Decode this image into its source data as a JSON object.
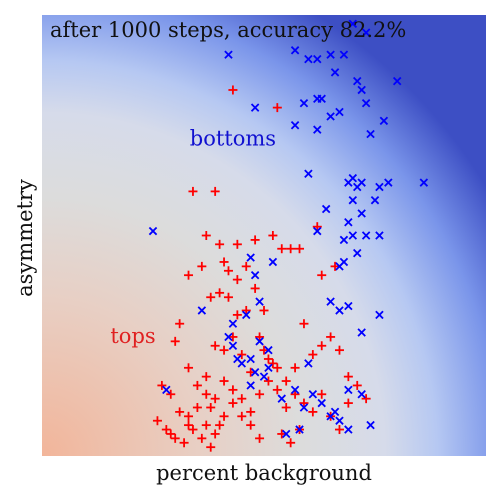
{
  "chart_data": {
    "type": "scatter",
    "title": "after 1000 steps, accuracy 82.2%",
    "xlabel": "percent background",
    "ylabel": "asymmetry",
    "xlim": [
      0,
      1
    ],
    "ylim": [
      0,
      1
    ],
    "ticks_visible": false,
    "grid": false,
    "background": "decision-boundary gradient: warm (tops) bottom-left, cool (bottoms) top-right",
    "region_colors": {
      "tops": "#f2b59a",
      "bottoms": "#3d4fc4",
      "neutral": "#dcdcdc"
    },
    "class_labels": [
      {
        "text": "bottoms",
        "color": "#1010d0",
        "x": 0.43,
        "y": 0.716
      },
      {
        "text": "tops",
        "color": "#e02020",
        "x": 0.205,
        "y": 0.269
      }
    ],
    "series": [
      {
        "name": "tops",
        "marker": "+",
        "color": "#ff0000",
        "points": [
          [
            0.43,
            0.83
          ],
          [
            0.53,
            0.79
          ],
          [
            0.34,
            0.6
          ],
          [
            0.39,
            0.6
          ],
          [
            0.37,
            0.5
          ],
          [
            0.4,
            0.48
          ],
          [
            0.56,
            0.47
          ],
          [
            0.41,
            0.44
          ],
          [
            0.44,
            0.48
          ],
          [
            0.48,
            0.49
          ],
          [
            0.52,
            0.5
          ],
          [
            0.54,
            0.47
          ],
          [
            0.62,
            0.52
          ],
          [
            0.58,
            0.47
          ],
          [
            0.63,
            0.41
          ],
          [
            0.66,
            0.43
          ],
          [
            0.33,
            0.41
          ],
          [
            0.36,
            0.43
          ],
          [
            0.38,
            0.36
          ],
          [
            0.4,
            0.37
          ],
          [
            0.42,
            0.36
          ],
          [
            0.44,
            0.32
          ],
          [
            0.46,
            0.33
          ],
          [
            0.48,
            0.38
          ],
          [
            0.5,
            0.33
          ],
          [
            0.31,
            0.3
          ],
          [
            0.3,
            0.26
          ],
          [
            0.33,
            0.2
          ],
          [
            0.37,
            0.18
          ],
          [
            0.39,
            0.25
          ],
          [
            0.41,
            0.24
          ],
          [
            0.43,
            0.27
          ],
          [
            0.45,
            0.23
          ],
          [
            0.47,
            0.19
          ],
          [
            0.49,
            0.27
          ],
          [
            0.51,
            0.22
          ],
          [
            0.53,
            0.2
          ],
          [
            0.55,
            0.17
          ],
          [
            0.57,
            0.2
          ],
          [
            0.59,
            0.3
          ],
          [
            0.61,
            0.23
          ],
          [
            0.63,
            0.25
          ],
          [
            0.65,
            0.27
          ],
          [
            0.67,
            0.24
          ],
          [
            0.69,
            0.18
          ],
          [
            0.71,
            0.16
          ],
          [
            0.73,
            0.13
          ],
          [
            0.35,
            0.16
          ],
          [
            0.37,
            0.14
          ],
          [
            0.39,
            0.13
          ],
          [
            0.41,
            0.17
          ],
          [
            0.43,
            0.15
          ],
          [
            0.45,
            0.13
          ],
          [
            0.47,
            0.1
          ],
          [
            0.49,
            0.14
          ],
          [
            0.51,
            0.17
          ],
          [
            0.53,
            0.15
          ],
          [
            0.55,
            0.11
          ],
          [
            0.57,
            0.14
          ],
          [
            0.59,
            0.12
          ],
          [
            0.27,
            0.16
          ],
          [
            0.29,
            0.14
          ],
          [
            0.31,
            0.1
          ],
          [
            0.33,
            0.09
          ],
          [
            0.35,
            0.11
          ],
          [
            0.37,
            0.07
          ],
          [
            0.39,
            0.05
          ],
          [
            0.41,
            0.09
          ],
          [
            0.43,
            0.12
          ],
          [
            0.45,
            0.09
          ],
          [
            0.47,
            0.07
          ],
          [
            0.49,
            0.04
          ],
          [
            0.26,
            0.08
          ],
          [
            0.28,
            0.06
          ],
          [
            0.3,
            0.04
          ],
          [
            0.32,
            0.03
          ],
          [
            0.34,
            0.06
          ],
          [
            0.36,
            0.04
          ],
          [
            0.38,
            0.02
          ],
          [
            0.4,
            0.07
          ],
          [
            0.54,
            0.05
          ],
          [
            0.56,
            0.03
          ],
          [
            0.58,
            0.06
          ],
          [
            0.61,
            0.1
          ],
          [
            0.63,
            0.14
          ],
          [
            0.65,
            0.09
          ],
          [
            0.67,
            0.06
          ],
          [
            0.69,
            0.12
          ],
          [
            0.44,
            0.4
          ],
          [
            0.42,
            0.42
          ],
          [
            0.46,
            0.43
          ],
          [
            0.5,
            0.24
          ],
          [
            0.52,
            0.21
          ],
          [
            0.33,
            0.07
          ],
          [
            0.29,
            0.05
          ],
          [
            0.38,
            0.11
          ]
        ]
      },
      {
        "name": "bottoms",
        "marker": "x",
        "color": "#0000ff",
        "points": [
          [
            0.7,
            0.98
          ],
          [
            0.73,
            0.96
          ],
          [
            0.42,
            0.91
          ],
          [
            0.57,
            0.92
          ],
          [
            0.6,
            0.9
          ],
          [
            0.62,
            0.9
          ],
          [
            0.65,
            0.91
          ],
          [
            0.68,
            0.91
          ],
          [
            0.66,
            0.87
          ],
          [
            0.71,
            0.85
          ],
          [
            0.72,
            0.83
          ],
          [
            0.8,
            0.85
          ],
          [
            0.48,
            0.79
          ],
          [
            0.59,
            0.8
          ],
          [
            0.62,
            0.81
          ],
          [
            0.63,
            0.81
          ],
          [
            0.65,
            0.77
          ],
          [
            0.67,
            0.78
          ],
          [
            0.73,
            0.8
          ],
          [
            0.77,
            0.76
          ],
          [
            0.57,
            0.75
          ],
          [
            0.62,
            0.74
          ],
          [
            0.74,
            0.73
          ],
          [
            0.6,
            0.64
          ],
          [
            0.69,
            0.62
          ],
          [
            0.71,
            0.61
          ],
          [
            0.7,
            0.63
          ],
          [
            0.72,
            0.62
          ],
          [
            0.76,
            0.61
          ],
          [
            0.78,
            0.62
          ],
          [
            0.86,
            0.62
          ],
          [
            0.75,
            0.58
          ],
          [
            0.7,
            0.58
          ],
          [
            0.72,
            0.55
          ],
          [
            0.69,
            0.53
          ],
          [
            0.64,
            0.56
          ],
          [
            0.62,
            0.51
          ],
          [
            0.68,
            0.49
          ],
          [
            0.7,
            0.5
          ],
          [
            0.73,
            0.5
          ],
          [
            0.76,
            0.5
          ],
          [
            0.71,
            0.46
          ],
          [
            0.68,
            0.44
          ],
          [
            0.67,
            0.43
          ],
          [
            0.25,
            0.51
          ],
          [
            0.47,
            0.45
          ],
          [
            0.52,
            0.44
          ],
          [
            0.48,
            0.41
          ],
          [
            0.49,
            0.35
          ],
          [
            0.46,
            0.32
          ],
          [
            0.43,
            0.3
          ],
          [
            0.36,
            0.33
          ],
          [
            0.65,
            0.35
          ],
          [
            0.67,
            0.33
          ],
          [
            0.69,
            0.34
          ],
          [
            0.76,
            0.32
          ],
          [
            0.72,
            0.28
          ],
          [
            0.49,
            0.26
          ],
          [
            0.47,
            0.22
          ],
          [
            0.51,
            0.2
          ],
          [
            0.42,
            0.27
          ],
          [
            0.43,
            0.25
          ],
          [
            0.44,
            0.22
          ],
          [
            0.45,
            0.21
          ],
          [
            0.48,
            0.19
          ],
          [
            0.28,
            0.15
          ],
          [
            0.54,
            0.13
          ],
          [
            0.57,
            0.15
          ],
          [
            0.59,
            0.11
          ],
          [
            0.61,
            0.14
          ],
          [
            0.63,
            0.12
          ],
          [
            0.65,
            0.09
          ],
          [
            0.67,
            0.08
          ],
          [
            0.69,
            0.15
          ],
          [
            0.55,
            0.05
          ],
          [
            0.58,
            0.06
          ],
          [
            0.66,
            0.1
          ],
          [
            0.74,
            0.07
          ],
          [
            0.69,
            0.06
          ],
          [
            0.72,
            0.14
          ],
          [
            0.51,
            0.24
          ],
          [
            0.6,
            0.21
          ],
          [
            0.47,
            0.16
          ],
          [
            0.5,
            0.18
          ]
        ]
      }
    ]
  }
}
